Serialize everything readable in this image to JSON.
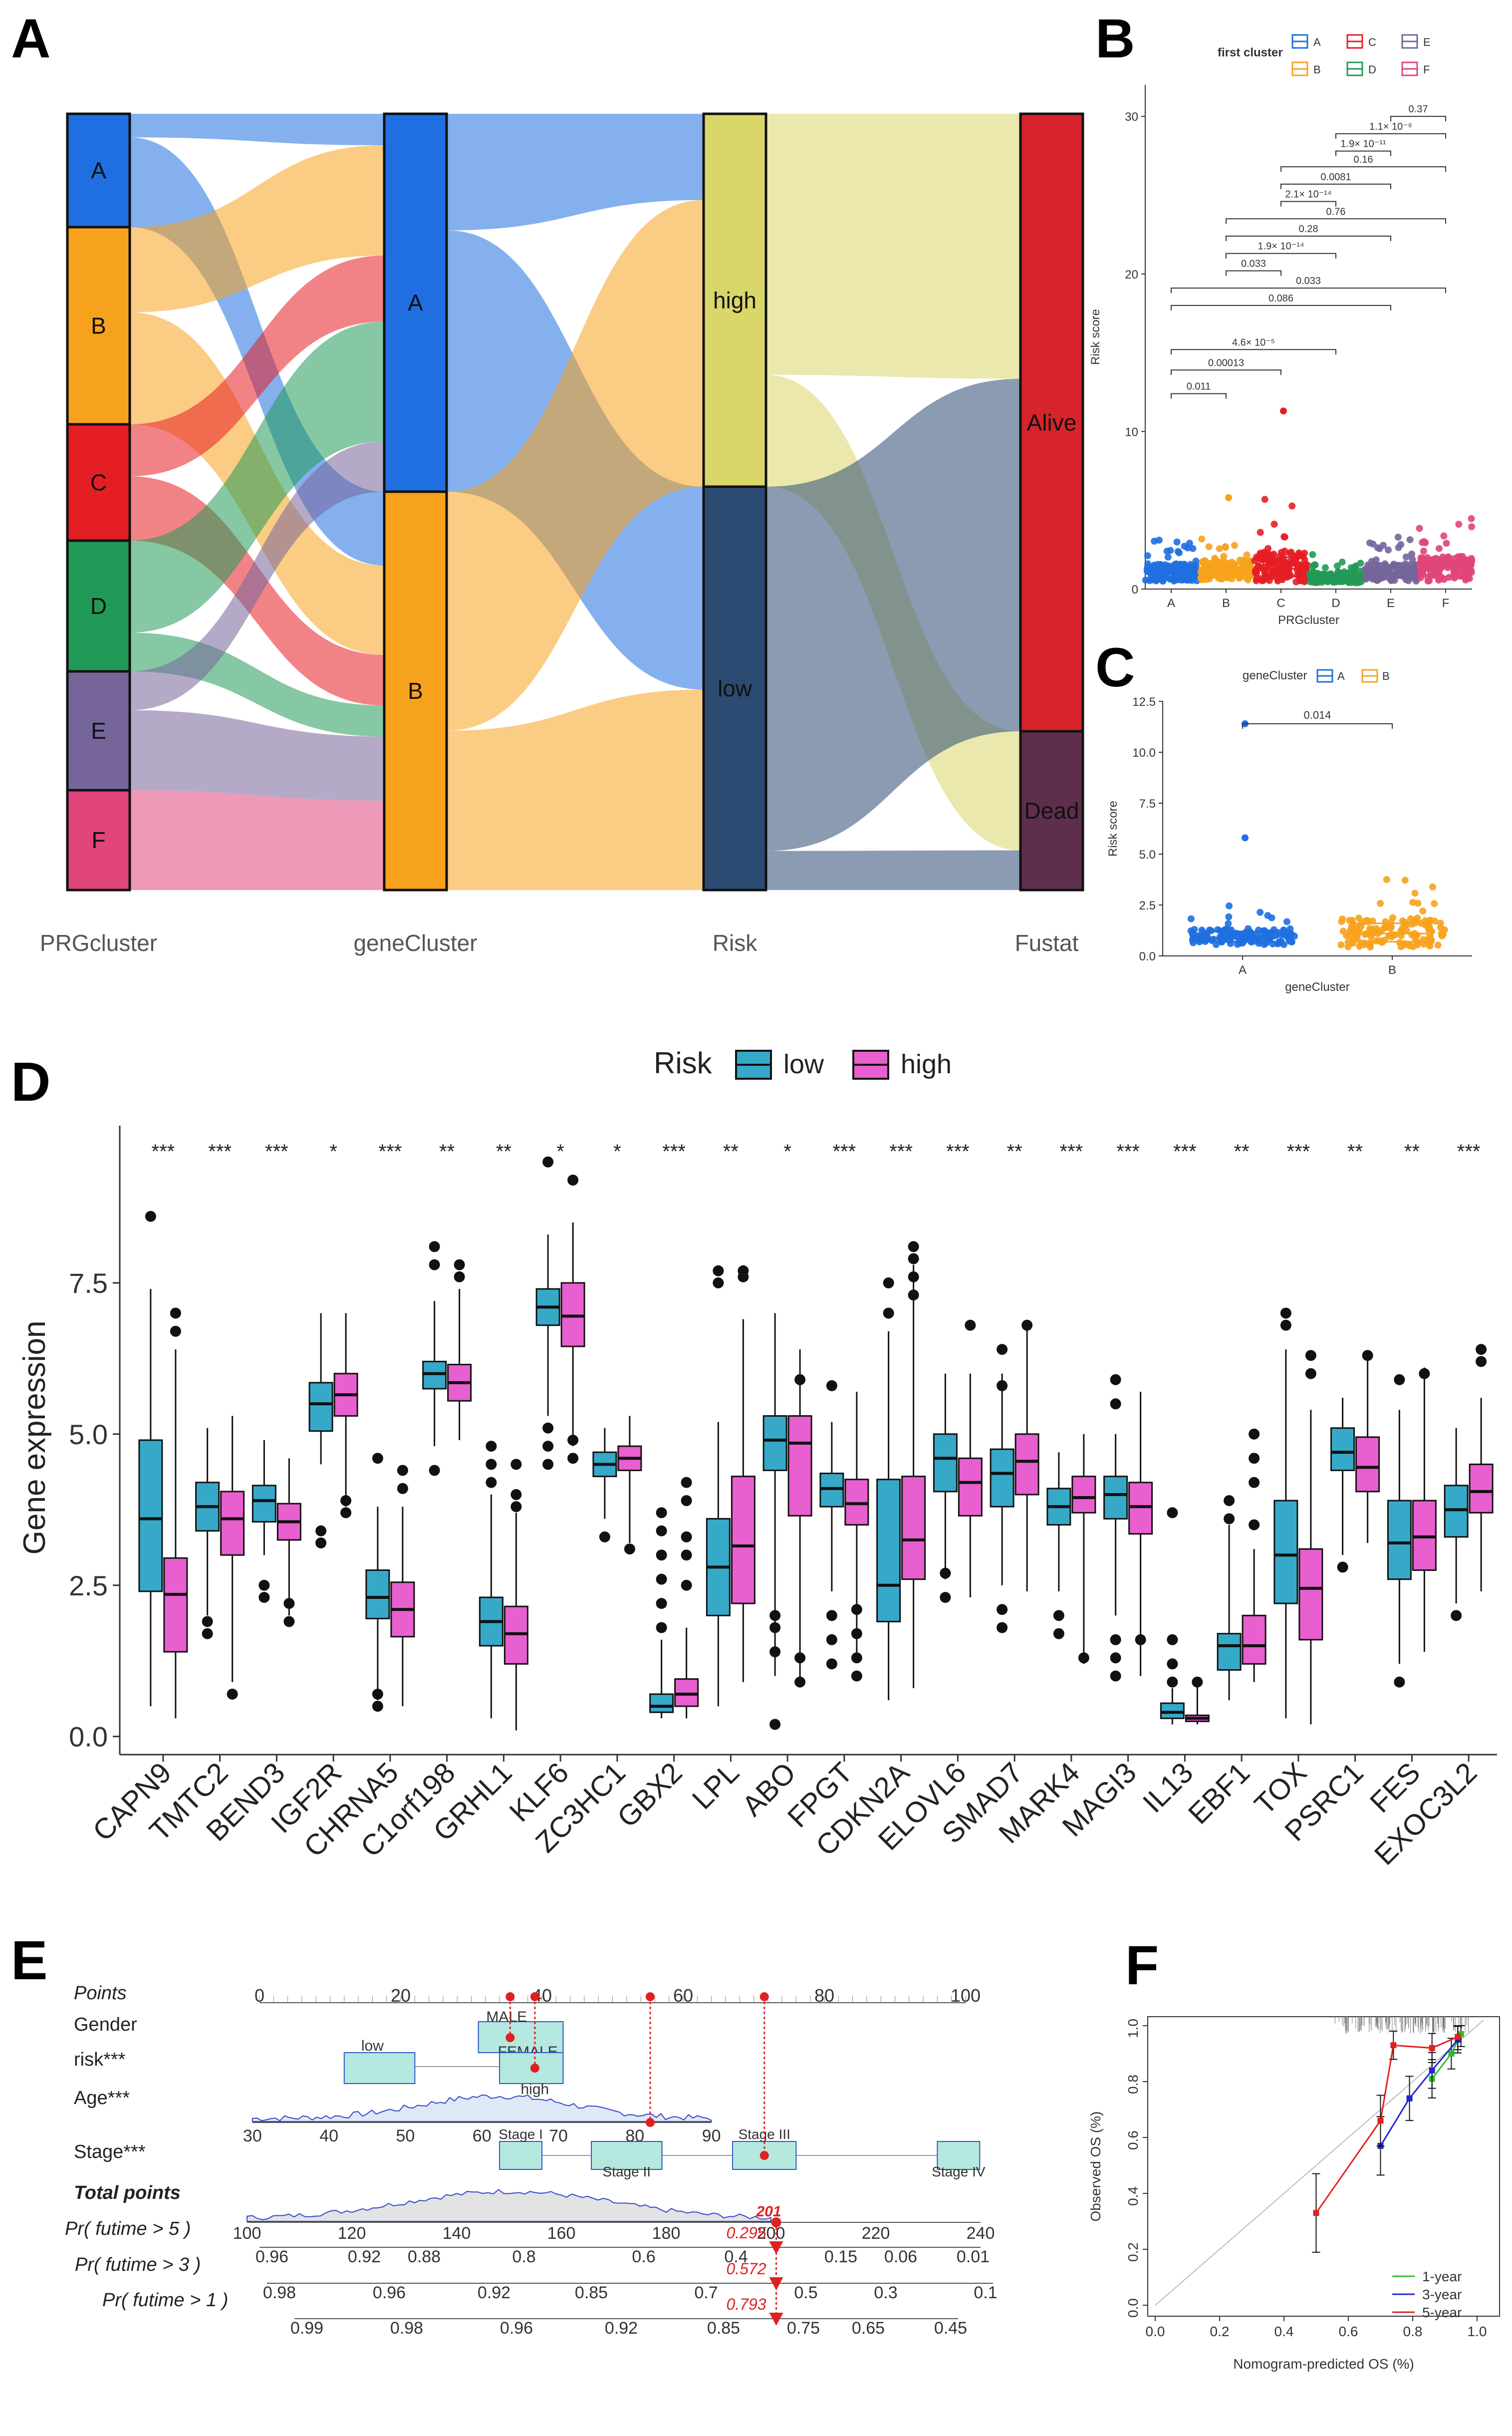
{
  "panel_labels": {
    "a": "A",
    "b": "B",
    "c": "C",
    "d": "D",
    "e": "E",
    "f": "F"
  },
  "colors": {
    "A": "#1f6fe0",
    "B": "#f7a21d",
    "C": "#e51e25",
    "D": "#219a57",
    "E": "#76659b",
    "F": "#e0457b",
    "gA": "#1f6fe0",
    "gB": "#f7a21d",
    "high": "#d9d66a",
    "low": "#2c4b73",
    "alive": "#d7232b",
    "dead": "#5e2f4c",
    "box_low": "#36a9c9",
    "box_high": "#e85fcf",
    "nomo_box": "#b5e8de",
    "nomo_edge": "#2b57c9",
    "cal_1": "#2bbf2b",
    "cal_3": "#2424cc",
    "cal_5": "#e02020"
  },
  "chart_data": [
    {
      "panel": "A",
      "type": "sankey",
      "stages": [
        "PRGcluster",
        "geneCluster",
        "Risk",
        "Fustat"
      ],
      "nodes": {
        "PRGcluster": [
          "A",
          "B",
          "C",
          "D",
          "E",
          "F"
        ],
        "geneCluster": [
          "A",
          "B"
        ],
        "Risk": [
          "high",
          "low"
        ],
        "Fustat": [
          "Alive",
          "Dead"
        ]
      },
      "flows": [
        {
          "from": "A",
          "to": "gA",
          "value": 10
        },
        {
          "from": "A",
          "to": "gB",
          "value": 38
        },
        {
          "from": "B",
          "to": "gA",
          "value": 35
        },
        {
          "from": "B",
          "to": "gB",
          "value": 46
        },
        {
          "from": "C",
          "to": "gA",
          "value": 21
        },
        {
          "from": "C",
          "to": "gB",
          "value": 26
        },
        {
          "from": "D",
          "to": "gA",
          "value": 38
        },
        {
          "from": "D",
          "to": "gB",
          "value": 16
        },
        {
          "from": "E",
          "to": "gA",
          "value": 16
        },
        {
          "from": "E",
          "to": "gB",
          "value": 33
        },
        {
          "from": "F",
          "to": "gB",
          "value": 46
        },
        {
          "from": "gA",
          "to": "high",
          "value": 37
        },
        {
          "from": "gA",
          "to": "low",
          "value": 83
        },
        {
          "from": "gB",
          "to": "high",
          "value": 123
        },
        {
          "from": "gB",
          "to": "low",
          "value": 82
        },
        {
          "from": "high",
          "to": "alive",
          "value": 112
        },
        {
          "from": "high",
          "to": "dead",
          "value": 48
        },
        {
          "from": "low",
          "to": "alive",
          "value": 149
        },
        {
          "from": "low",
          "to": "dead",
          "value": 16
        }
      ]
    },
    {
      "panel": "B",
      "type": "box+scatter",
      "legend_title": "first cluster",
      "legend": [
        "A",
        "B",
        "C",
        "D",
        "E",
        "F"
      ],
      "categories": [
        "A",
        "B",
        "C",
        "D",
        "E",
        "F"
      ],
      "xlabel": "PRGcluster",
      "ylabel": "Risk score",
      "ylim": [
        0,
        32
      ],
      "yticks": [
        0,
        10,
        20,
        30
      ],
      "box": {
        "q1": [
          0.7,
          0.8,
          0.8,
          0.5,
          0.7,
          0.8
        ],
        "median": [
          1.0,
          1.1,
          1.3,
          0.7,
          1.0,
          1.3
        ],
        "q3": [
          1.4,
          1.6,
          2.0,
          0.9,
          1.4,
          1.8
        ]
      },
      "outliers": {
        "C": [
          11.3
        ],
        "B": [
          5.8
        ]
      },
      "comparisons": [
        {
          "pair": [
            "E",
            "F"
          ],
          "p": "0.37"
        },
        {
          "pair": [
            "D",
            "F"
          ],
          "p": "1.1× 10⁻⁶"
        },
        {
          "pair": [
            "D",
            "E"
          ],
          "p": "1.9× 10⁻¹¹"
        },
        {
          "pair": [
            "C",
            "F"
          ],
          "p": "0.16"
        },
        {
          "pair": [
            "C",
            "E"
          ],
          "p": "0.0081"
        },
        {
          "pair": [
            "C",
            "D"
          ],
          "p": "2.1× 10⁻¹⁴"
        },
        {
          "pair": [
            "B",
            "F"
          ],
          "p": "0.76"
        },
        {
          "pair": [
            "B",
            "E"
          ],
          "p": "0.28"
        },
        {
          "pair": [
            "B",
            "D"
          ],
          "p": "1.9× 10⁻¹⁴"
        },
        {
          "pair": [
            "B",
            "C"
          ],
          "p": "0.033"
        },
        {
          "pair": [
            "A",
            "F"
          ],
          "p": "0.033"
        },
        {
          "pair": [
            "A",
            "E"
          ],
          "p": "0.086"
        },
        {
          "pair": [
            "A",
            "D"
          ],
          "p": "4.6× 10⁻⁵"
        },
        {
          "pair": [
            "A",
            "C"
          ],
          "p": "0.00013"
        },
        {
          "pair": [
            "A",
            "B"
          ],
          "p": "0.011"
        }
      ]
    },
    {
      "panel": "C",
      "type": "box+scatter",
      "legend_title": "geneCluster",
      "legend": [
        "A",
        "B"
      ],
      "categories": [
        "A",
        "B"
      ],
      "xlabel": "geneCluster",
      "ylabel": "Risk score",
      "ylim": [
        0,
        12.5
      ],
      "yticks": [
        0.0,
        2.5,
        5.0,
        7.5,
        10.0,
        12.5
      ],
      "ytick_labels": [
        "0.0",
        "2.5",
        "5.0",
        "7.5",
        "10.0",
        "12.5"
      ],
      "box": {
        "q1": [
          0.7,
          0.7
        ],
        "median": [
          0.9,
          1.1
        ],
        "q3": [
          1.2,
          1.6
        ]
      },
      "outliers": {
        "A": [
          11.4,
          5.8
        ]
      },
      "comparisons": [
        {
          "pair": [
            "A",
            "B"
          ],
          "p": "0.014"
        }
      ]
    },
    {
      "panel": "D",
      "type": "boxplot",
      "legend_title": "Risk",
      "legend": [
        "low",
        "high"
      ],
      "ylabel": "Gene expression",
      "ylim": [
        -0.3,
        10.1
      ],
      "yticks": [
        0.0,
        2.5,
        5.0,
        7.5
      ],
      "ytick_labels": [
        "0.0",
        "2.5",
        "5.0",
        "7.5"
      ],
      "categories": [
        "CAPN9",
        "TMTC2",
        "BEND3",
        "IGF2R",
        "CHRNA5",
        "C1orf198",
        "GRHL1",
        "KLF6",
        "ZC3HC1",
        "GBX2",
        "LPL",
        "ABO",
        "FPGT",
        "CDKN2A",
        "ELOVL6",
        "SMAD7",
        "MARK4",
        "MAGI3",
        "IL13",
        "EBF1",
        "TOX",
        "PSRC1",
        "FES",
        "EXOC3L2"
      ],
      "significance": [
        "***",
        "***",
        "***",
        "*",
        "***",
        "**",
        "**",
        "*",
        "*",
        "***",
        "**",
        "*",
        "***",
        "***",
        "***",
        "**",
        "***",
        "***",
        "***",
        "**",
        "***",
        "**",
        "**",
        "***"
      ],
      "series": [
        {
          "name": "low",
          "min": [
            0.5,
            2.0,
            3.0,
            4.5,
            0.6,
            4.8,
            0.3,
            5.3,
            3.6,
            0.3,
            0.5,
            1.0,
            2.4,
            0.6,
            2.6,
            2.5,
            2.4,
            2.0,
            0.2,
            0.6,
            0.3,
            3.0,
            1.2,
            2.2
          ],
          "q1": [
            2.4,
            3.4,
            3.55,
            5.05,
            1.95,
            5.75,
            1.5,
            6.8,
            4.3,
            0.4,
            2.0,
            4.4,
            3.8,
            1.9,
            4.05,
            3.8,
            3.5,
            3.6,
            0.3,
            1.1,
            2.2,
            4.4,
            2.6,
            3.3
          ],
          "median": [
            3.6,
            3.8,
            3.9,
            5.5,
            2.3,
            6.0,
            1.9,
            7.1,
            4.5,
            0.5,
            2.8,
            4.9,
            4.1,
            2.5,
            4.6,
            4.35,
            3.8,
            4.0,
            0.4,
            1.5,
            3.0,
            4.7,
            3.2,
            3.75
          ],
          "q3": [
            4.9,
            4.2,
            4.15,
            5.85,
            2.75,
            6.2,
            2.3,
            7.4,
            4.7,
            0.7,
            3.6,
            5.3,
            4.35,
            4.25,
            5.0,
            4.75,
            4.1,
            4.3,
            0.55,
            1.7,
            3.9,
            5.1,
            3.9,
            4.15
          ],
          "max": [
            7.4,
            5.1,
            4.9,
            7.0,
            3.8,
            7.2,
            4.0,
            8.3,
            5.1,
            1.6,
            5.2,
            7.0,
            5.2,
            6.7,
            6.0,
            6.0,
            4.7,
            5.0,
            0.8,
            3.5,
            6.4,
            5.6,
            5.4,
            5.1
          ],
          "outliers": [
            [
              8.6
            ],
            [
              1.7,
              1.9
            ],
            [
              2.3,
              2.5
            ],
            [
              3.2,
              3.4
            ],
            [
              0.5,
              0.7,
              4.6
            ],
            [
              4.4,
              8.1,
              7.8
            ],
            [
              4.8,
              4.5,
              4.2
            ],
            [
              9.5,
              4.5,
              4.8,
              5.1
            ],
            [
              3.3
            ],
            [
              1.8,
              2.2,
              2.6,
              3.0,
              3.4,
              3.7
            ],
            [
              7.7,
              7.5
            ],
            [
              0.2,
              1.4,
              1.8,
              2.0
            ],
            [
              1.2,
              1.6,
              2.0,
              5.8
            ],
            [
              7.0,
              7.5
            ],
            [
              2.3,
              2.7
            ],
            [
              1.8,
              2.1,
              5.8,
              6.4
            ],
            [
              1.7,
              2.0
            ],
            [
              1.0,
              1.3,
              1.6,
              5.5,
              5.9
            ],
            [
              0.9,
              1.2,
              1.6,
              3.7
            ],
            [
              3.6,
              3.9
            ],
            [
              7.0,
              6.8
            ],
            [
              2.8
            ],
            [
              0.9,
              5.9
            ],
            [
              2.0
            ]
          ]
        },
        {
          "name": "high",
          "min": [
            0.3,
            0.9,
            2.0,
            3.8,
            0.5,
            4.9,
            0.1,
            4.8,
            3.2,
            0.3,
            0.9,
            0.9,
            1.3,
            0.8,
            2.3,
            2.4,
            1.2,
            1.0,
            0.2,
            0.9,
            0.2,
            3.2,
            1.4,
            2.4
          ],
          "q1": [
            1.4,
            3.0,
            3.25,
            5.3,
            1.65,
            5.55,
            1.2,
            6.45,
            4.4,
            0.5,
            2.2,
            3.65,
            3.5,
            2.6,
            3.65,
            4.0,
            3.7,
            3.35,
            0.25,
            1.2,
            1.6,
            4.05,
            2.75,
            3.7
          ],
          "median": [
            2.35,
            3.6,
            3.55,
            5.65,
            2.1,
            5.85,
            1.7,
            6.95,
            4.6,
            0.7,
            3.15,
            4.85,
            3.85,
            3.25,
            4.2,
            4.55,
            3.95,
            3.8,
            0.3,
            1.5,
            2.45,
            4.45,
            3.3,
            4.05
          ],
          "q3": [
            2.95,
            4.05,
            3.85,
            6.0,
            2.55,
            6.15,
            2.15,
            7.5,
            4.8,
            0.95,
            4.3,
            5.3,
            4.25,
            4.3,
            4.6,
            5.0,
            4.3,
            4.2,
            0.35,
            2.0,
            3.1,
            4.95,
            3.9,
            4.5
          ],
          "max": [
            6.4,
            5.3,
            4.6,
            7.0,
            3.8,
            7.4,
            3.7,
            8.5,
            5.3,
            1.8,
            6.9,
            6.4,
            5.7,
            7.8,
            6.0,
            6.8,
            5.0,
            5.7,
            0.9,
            3.1,
            5.4,
            6.3,
            6.1,
            5.6
          ],
          "outliers": [
            [
              7.0,
              6.7
            ],
            [
              0.7
            ],
            [
              1.9,
              2.2
            ],
            [
              3.7,
              3.9
            ],
            [
              4.1,
              4.4
            ],
            [
              7.6,
              7.8
            ],
            [
              4.5,
              4.0,
              3.8
            ],
            [
              9.2,
              4.6,
              4.9
            ],
            [
              3.1
            ],
            [
              2.5,
              3.0,
              3.3,
              3.9,
              4.2
            ],
            [
              7.7,
              7.6
            ],
            [
              0.9,
              1.3,
              5.9
            ],
            [
              1.0,
              1.3,
              1.7,
              2.1
            ],
            [
              8.1,
              7.9,
              7.6,
              7.3
            ],
            [
              6.8
            ],
            [
              6.8
            ],
            [
              1.3
            ],
            [
              1.6
            ],
            [
              0.9
            ],
            [
              3.5,
              4.2,
              4.6,
              5.0
            ],
            [
              6.0,
              6.3
            ],
            [
              6.3
            ],
            [
              6.0
            ],
            [
              6.2,
              6.4
            ]
          ]
        }
      ]
    },
    {
      "panel": "E",
      "type": "nomogram",
      "rows": [
        "Points",
        "Gender",
        "risk***",
        "Age***",
        "Stage***",
        "Total points",
        "Pr( futime > 5 )",
        "Pr( futime > 3 )",
        "Pr( futime > 1 )"
      ],
      "points_axis": {
        "range": [
          0,
          100
        ],
        "ticks": [
          "0",
          "20",
          "40",
          "60",
          "80",
          "100"
        ]
      },
      "gender": {
        "labels": [
          "MALE",
          "FEMALE"
        ],
        "points_range": [
          31,
          43
        ]
      },
      "risk": {
        "labels": [
          "low",
          "high"
        ],
        "points_range": [
          15,
          39
        ]
      },
      "age": {
        "range": [
          30,
          90
        ],
        "ticks": [
          "30",
          "40",
          "50",
          "60",
          "70",
          "80",
          "90"
        ]
      },
      "stage": {
        "labels": [
          "Stage I",
          "Stage II",
          "Stage III",
          "Stage IV"
        ],
        "points": [
          38,
          52,
          71,
          100
        ]
      },
      "total_points": {
        "range": [
          100,
          240
        ],
        "ticks": [
          "100",
          "120",
          "140",
          "160",
          "180",
          "200",
          "220",
          "240"
        ]
      },
      "pr5": {
        "ticks": [
          "0.96",
          "0.92",
          "0.88",
          "0.8",
          "0.6",
          "0.4",
          "0.15",
          "0.06",
          "0.01"
        ]
      },
      "pr3": {
        "ticks": [
          "0.98",
          "0.96",
          "0.92",
          "0.85",
          "0.7",
          "0.5",
          "0.3",
          "0.1"
        ]
      },
      "pr1": {
        "ticks": [
          "0.99",
          "0.98",
          "0.96",
          "0.92",
          "0.85",
          "0.75",
          "0.65",
          "0.45"
        ]
      },
      "selected": {
        "total": "201",
        "pr5": "0.295",
        "pr3": "0.572",
        "pr1": "0.793"
      }
    },
    {
      "panel": "F",
      "type": "calibration",
      "xlabel": "Nomogram-predicted OS (%)",
      "ylabel": "Observed OS (%)",
      "xlim": [
        0,
        1
      ],
      "ylim": [
        0,
        1
      ],
      "ticks": [
        "0.0",
        "0.2",
        "0.4",
        "0.6",
        "0.8",
        "1.0"
      ],
      "series": [
        {
          "name": "1-year",
          "x": [
            0.86,
            0.92,
            0.95
          ],
          "y": [
            0.81,
            0.9,
            0.97
          ]
        },
        {
          "name": "3-year",
          "x": [
            0.7,
            0.79,
            0.86,
            0.94
          ],
          "y": [
            0.57,
            0.74,
            0.84,
            0.95
          ]
        },
        {
          "name": "5-year",
          "x": [
            0.5,
            0.7,
            0.74,
            0.86,
            0.94
          ],
          "y": [
            0.33,
            0.66,
            0.93,
            0.92,
            0.96
          ]
        }
      ]
    }
  ]
}
